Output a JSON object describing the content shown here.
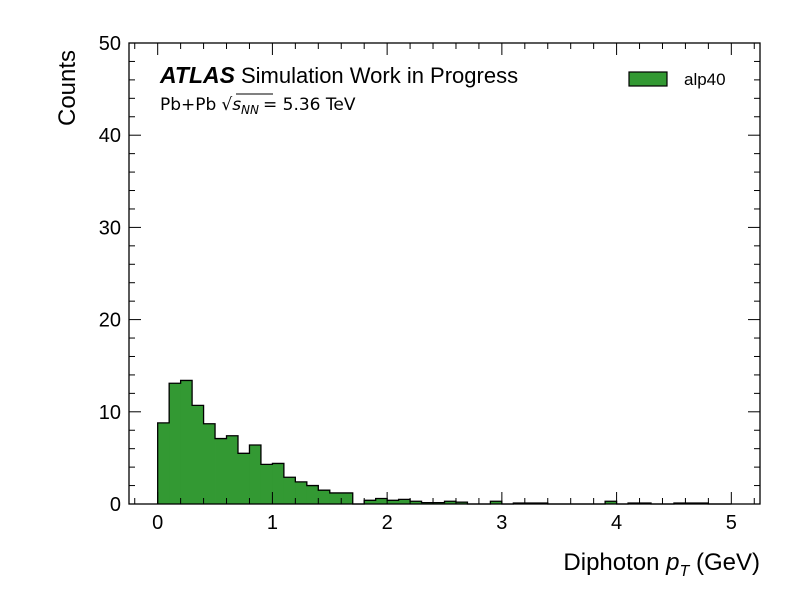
{
  "chart_data": {
    "type": "bar",
    "histogram": true,
    "xlabel": "Diphoton p_T (GeV)",
    "xlabel_main": "Diphoton ",
    "xlabel_var": "p",
    "xlabel_sub": "T",
    "xlabel_unit": " (GeV)",
    "ylabel": "Counts",
    "xlim": [
      -0.25,
      5.25
    ],
    "ylim": [
      0,
      50
    ],
    "xticks": [
      0,
      1,
      2,
      3,
      4,
      5
    ],
    "yticks": [
      0,
      10,
      20,
      30,
      40,
      50
    ],
    "grid": false,
    "legend_position": "top-right",
    "bin_width": 0.1,
    "bin_start": 0.0,
    "series": [
      {
        "name": "alp40",
        "color": "#339933",
        "edge_color": "#000000",
        "values": [
          8.8,
          13.1,
          13.4,
          10.7,
          8.7,
          7.1,
          7.4,
          5.5,
          6.4,
          4.3,
          4.4,
          2.9,
          2.4,
          2.0,
          1.5,
          1.2,
          1.2,
          0.0,
          0.4,
          0.6,
          0.4,
          0.5,
          0.3,
          0.15,
          0.15,
          0.3,
          0.2,
          0.0,
          0.0,
          0.3,
          0.0,
          0.1,
          0.1,
          0.1,
          0.0,
          0.0,
          0.0,
          0.0,
          0.0,
          0.3,
          0.0,
          0.1,
          0.1,
          0.0,
          0.0,
          0.1,
          0.1,
          0.1,
          0.0,
          0.0
        ]
      }
    ]
  },
  "annotations": {
    "experiment": "ATLAS",
    "status": "Simulation Work in Progress",
    "system": "Pb+Pb",
    "energy_value": "= 5.36 TeV",
    "sqrt_symbol": "√",
    "snn_main": "s",
    "snn_sub": "NN"
  }
}
